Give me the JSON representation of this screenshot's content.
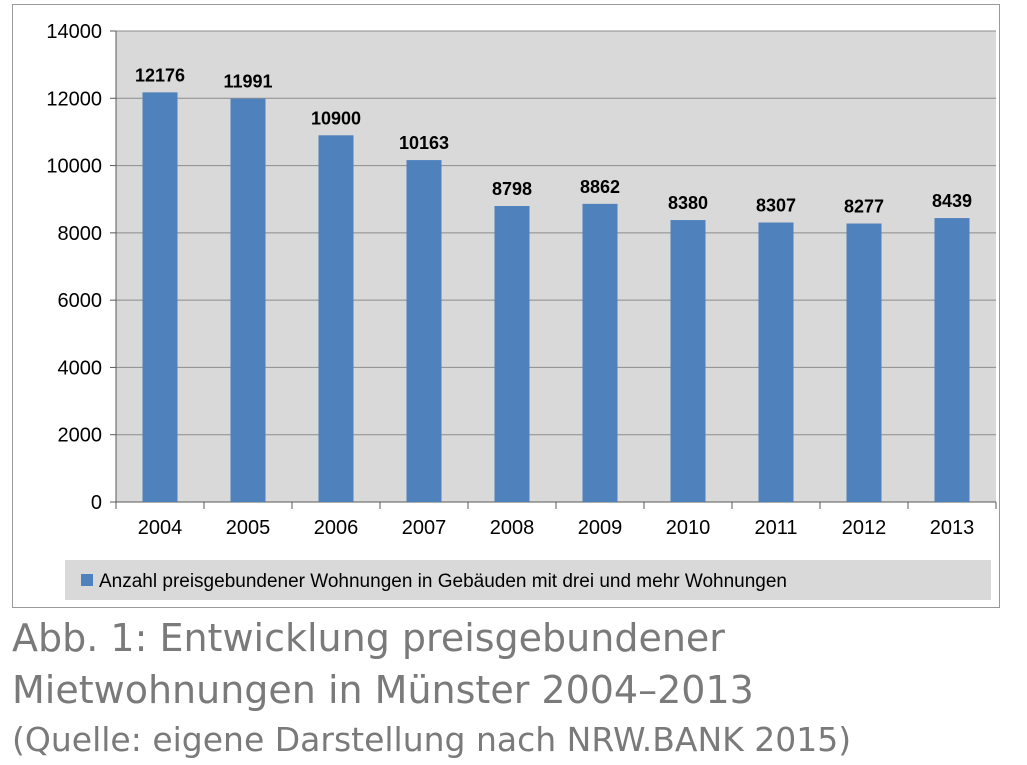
{
  "chart_data": {
    "type": "bar",
    "categories": [
      "2004",
      "2005",
      "2006",
      "2007",
      "2008",
      "2009",
      "2010",
      "2011",
      "2012",
      "2013"
    ],
    "series": [
      {
        "name": "Anzahl preisgebundener Wohnungen in Gebäuden mit drei und mehr Wohnungen",
        "values": [
          12176,
          11991,
          10900,
          10163,
          8798,
          8862,
          8380,
          8307,
          8277,
          8439
        ]
      }
    ],
    "ylim": [
      0,
      14000
    ],
    "yticks": [
      "0",
      "2000",
      "4000",
      "6000",
      "8000",
      "10000",
      "12000",
      "14000"
    ],
    "grid": true,
    "legend_position": "bottom",
    "data_labels": true,
    "colors": {
      "bar": "#4f81bd",
      "plot_background": "#d9d9d9",
      "grid": "#8c8c8c",
      "legend_background": "#d9d9d9"
    }
  },
  "caption": {
    "line1": "Abb. 1: Entwicklung preisgebundener",
    "line2": "Mietwohnungen in Münster 2004–2013",
    "source": "(Quelle: eigene Darstellung nach NRW.BANK 2015)"
  }
}
